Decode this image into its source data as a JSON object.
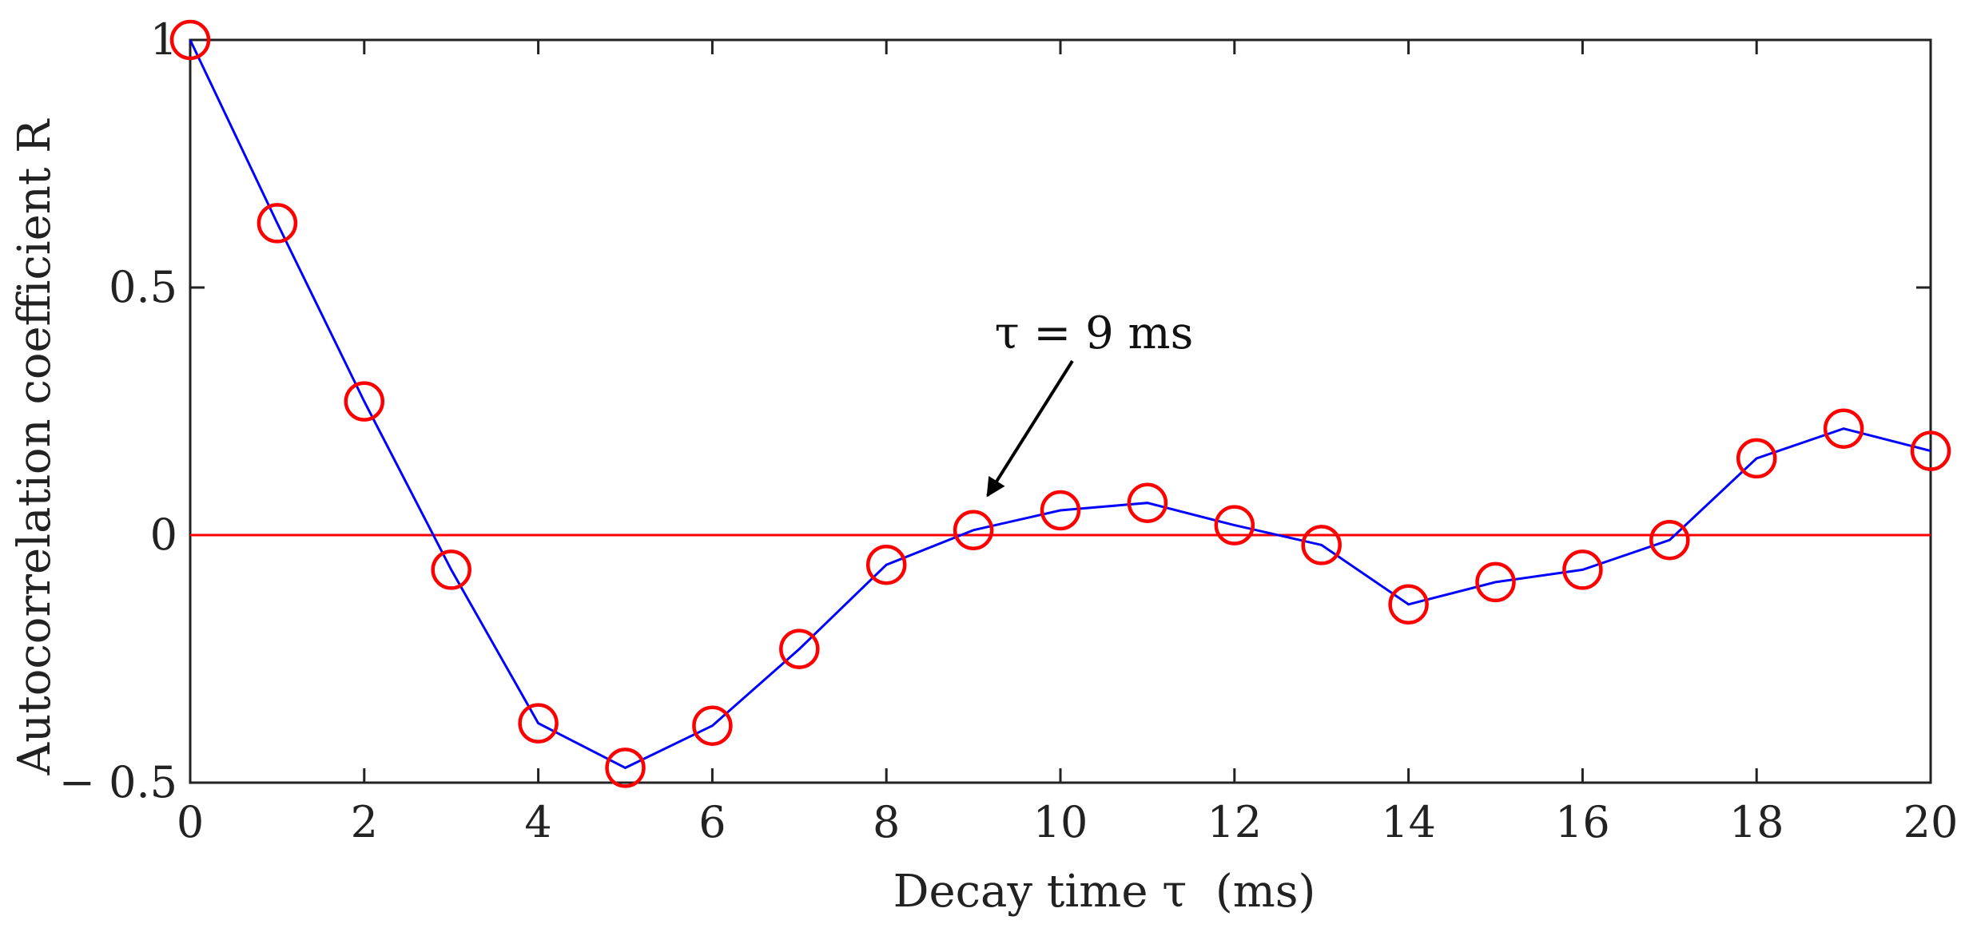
{
  "chart_data": {
    "type": "line",
    "title": "",
    "xlabel": "Decay time τ  (ms)",
    "ylabel": "Autocorrelation coefficient R",
    "xlim": [
      0,
      20
    ],
    "ylim": [
      -0.5,
      1
    ],
    "x_ticks": [
      0,
      2,
      4,
      6,
      8,
      10,
      12,
      14,
      16,
      18,
      20
    ],
    "x_tick_labels": [
      "0",
      "2",
      "4",
      "6",
      "8",
      "10",
      "12",
      "14",
      "16",
      "18",
      "20"
    ],
    "y_ticks": [
      -0.5,
      0,
      0.5,
      1
    ],
    "y_tick_labels": [
      "− 0.5",
      "0",
      "0.5",
      "1"
    ],
    "grid": false,
    "series": [
      {
        "name": "Autocorrelation coefficient",
        "line_color": "#0000ff",
        "marker": "circle",
        "marker_color": "#ff0000",
        "x": [
          0,
          1,
          2,
          3,
          4,
          5,
          6,
          7,
          8,
          9,
          10,
          11,
          12,
          13,
          14,
          15,
          16,
          17,
          18,
          19,
          20
        ],
        "values": [
          1.0,
          0.63,
          0.27,
          -0.07,
          -0.38,
          -0.47,
          -0.385,
          -0.23,
          -0.06,
          0.01,
          0.05,
          0.065,
          0.02,
          -0.02,
          -0.14,
          -0.095,
          -0.07,
          -0.01,
          0.155,
          0.215,
          0.17
        ]
      }
    ],
    "reference_lines": [
      {
        "name": "Zero line",
        "y": 0,
        "color": "#ff0000"
      }
    ],
    "annotations": [
      {
        "text": "τ = 9 ms",
        "target_x": 9.2,
        "target_y": 0.07,
        "label_x": 10.0,
        "label_y": 0.4
      }
    ]
  },
  "colors": {
    "axes": "#222222",
    "series_line": "#0000ff",
    "markers": "#ff0000",
    "reference_line": "#ff0000",
    "arrow": "#000000"
  }
}
